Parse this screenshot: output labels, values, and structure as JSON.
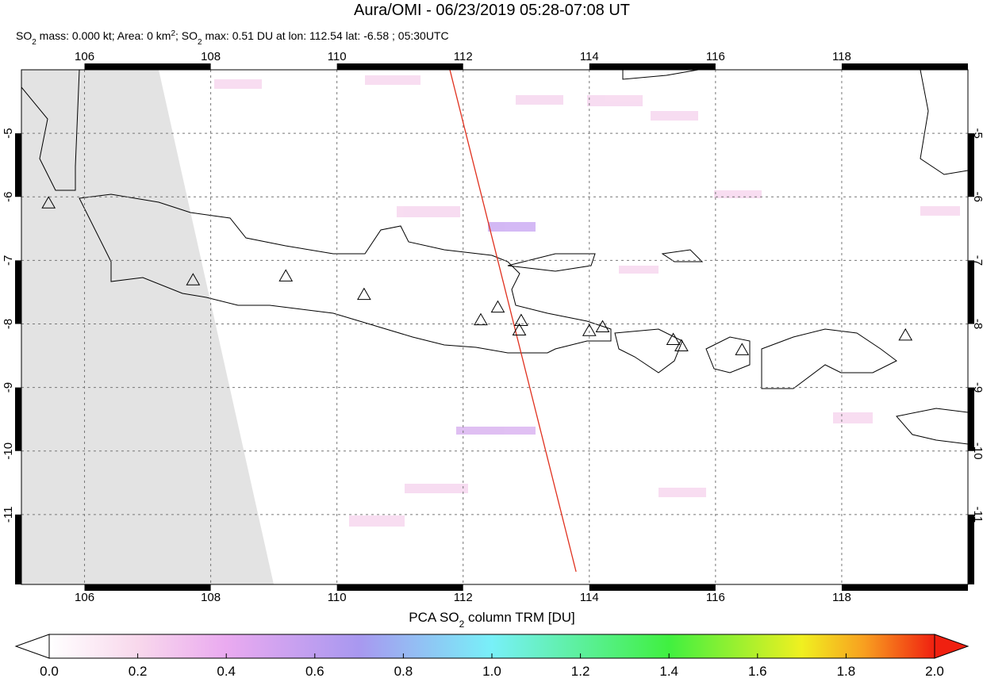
{
  "title": "Aura/OMI - 06/23/2019 05:28-07:08 UT",
  "subtitle": [
    "SO",
    "2",
    " mass: 0.000 kt; Area: 0 km",
    "2",
    "; SO",
    "2",
    " max: 0.51 DU at lon: 112.54 lat: -6.58 ; 05:30UTC"
  ],
  "map": {
    "xlim": [
      105,
      120
    ],
    "ylim": [
      -12.1,
      -4
    ],
    "xticks": [
      106,
      108,
      110,
      112,
      114,
      116,
      118
    ],
    "yticks": [
      -5,
      -6,
      -7,
      -8,
      -9,
      -10,
      -11
    ],
    "volcanoes": {
      "lon": [
        105.43,
        107.72,
        109.19,
        110.43,
        112.28,
        112.55,
        112.92,
        112.89,
        114.0,
        114.21,
        115.33,
        115.46,
        116.42,
        119.01
      ],
      "lat": [
        -6.1,
        -7.31,
        -7.25,
        -7.54,
        -7.94,
        -7.74,
        -7.95,
        -8.1,
        -8.11,
        -8.05,
        -8.25,
        -8.35,
        -8.41,
        -8.18
      ]
    },
    "track": {
      "lon": [
        111.79,
        113.79
      ],
      "lat": [
        -4.0,
        -11.9
      ],
      "color": "#e0301e"
    }
  },
  "colorbar": {
    "label": [
      "PCA SO",
      "2",
      " column TRM [DU]"
    ],
    "lim": [
      0,
      2
    ],
    "ticks": [
      {
        "value": 0,
        "label": "0.0"
      },
      {
        "value": 0.2,
        "label": "0.2"
      },
      {
        "value": 0.4,
        "label": "0.4"
      },
      {
        "value": 0.6,
        "label": "0.6"
      },
      {
        "value": 0.8,
        "label": "0.8"
      },
      {
        "value": 1,
        "label": "1.0"
      },
      {
        "value": 1.2,
        "label": "1.2"
      },
      {
        "value": 1.4,
        "label": "1.4"
      },
      {
        "value": 1.6,
        "label": "1.6"
      },
      {
        "value": 1.8,
        "label": "1.8"
      },
      {
        "value": 2,
        "label": "2.0"
      }
    ]
  }
}
